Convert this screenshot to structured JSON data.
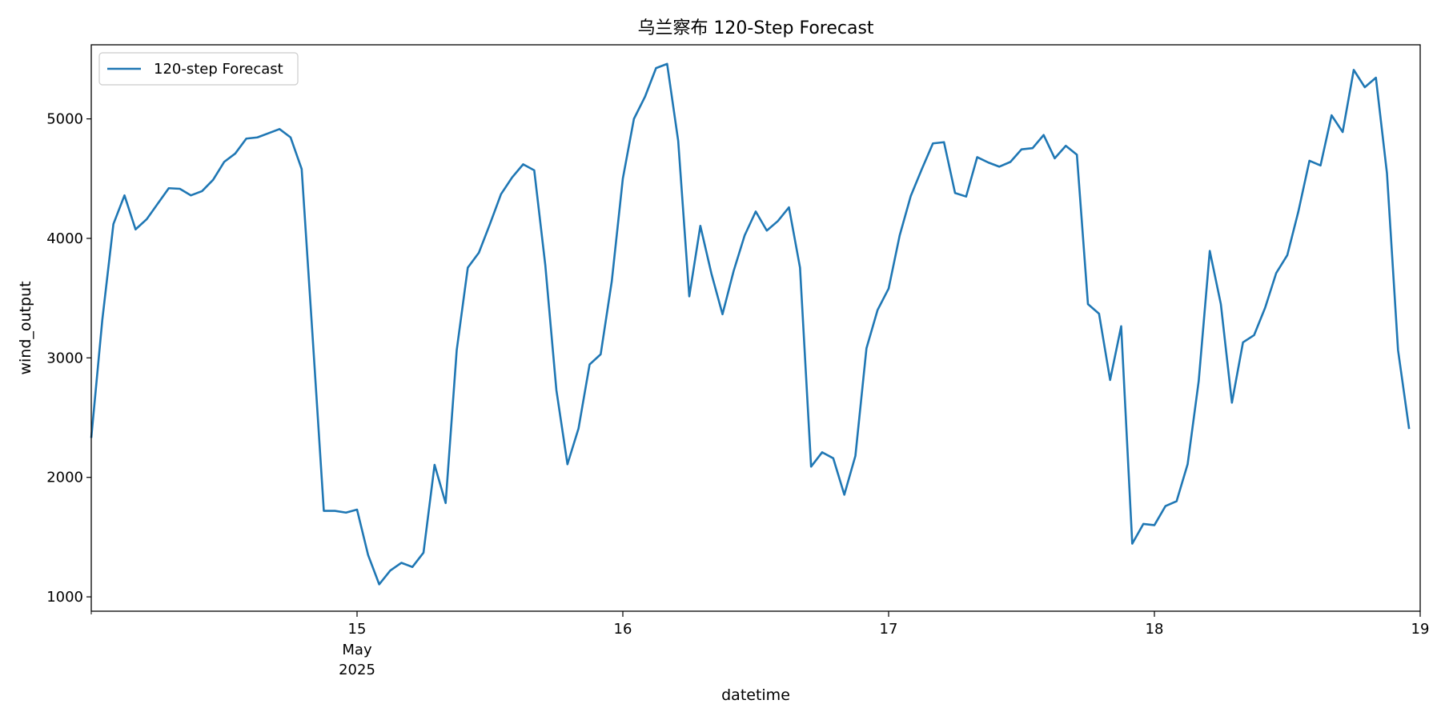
{
  "chart_data": {
    "type": "line",
    "title": "乌兰察布 120-Step Forecast",
    "xlabel": "datetime",
    "ylabel": "wind_output",
    "legend": {
      "placement": "top-left"
    },
    "grid": false,
    "xlim": [
      "2025-05-14 00:00",
      "2025-05-19 00:00"
    ],
    "ylim": [
      880,
      5620
    ],
    "y_ticks": [
      1000,
      2000,
      3000,
      4000,
      5000
    ],
    "x_ticks": [
      {
        "x": "2025-05-15 00:00",
        "label": "15",
        "sublabels": [
          "May",
          "2025"
        ]
      },
      {
        "x": "2025-05-16 00:00",
        "label": "16"
      },
      {
        "x": "2025-05-17 00:00",
        "label": "17"
      },
      {
        "x": "2025-05-18 00:00",
        "label": "18"
      },
      {
        "x": "2025-05-19 00:00",
        "label": "19"
      }
    ],
    "x_start": "2025-05-14 00:00",
    "x_step": "1 hour",
    "colors": {
      "series": "#1f77b4"
    },
    "series": [
      {
        "name": "120-step Forecast",
        "values": [
          2330,
          3320,
          4120,
          4360,
          4075,
          4160,
          4290,
          4420,
          4415,
          4360,
          4395,
          4490,
          4640,
          4710,
          4835,
          4845,
          4880,
          4915,
          4845,
          4580,
          3160,
          1720,
          1720,
          1705,
          1730,
          1350,
          1105,
          1220,
          1285,
          1250,
          1370,
          2105,
          1785,
          3065,
          3755,
          3880,
          4120,
          4370,
          4510,
          4620,
          4570,
          3775,
          2730,
          2110,
          2410,
          2945,
          3030,
          3640,
          4500,
          5000,
          5185,
          5425,
          5460,
          4815,
          3515,
          4105,
          3705,
          3365,
          3725,
          4025,
          4225,
          4065,
          4145,
          4260,
          3755,
          2090,
          2210,
          2160,
          1855,
          2180,
          3080,
          3400,
          3580,
          4025,
          4355,
          4580,
          4795,
          4805,
          4380,
          4350,
          4680,
          4635,
          4600,
          4640,
          4745,
          4755,
          4865,
          4670,
          4775,
          4700,
          3450,
          3370,
          2815,
          3265,
          1445,
          1610,
          1600,
          1760,
          1800,
          2110,
          2805,
          3895,
          3450,
          2625,
          3130,
          3190,
          3420,
          3710,
          3860,
          4225,
          4650,
          4610,
          5030,
          4890,
          5410,
          5265,
          5345,
          4545,
          3065,
          2405
        ]
      }
    ]
  }
}
